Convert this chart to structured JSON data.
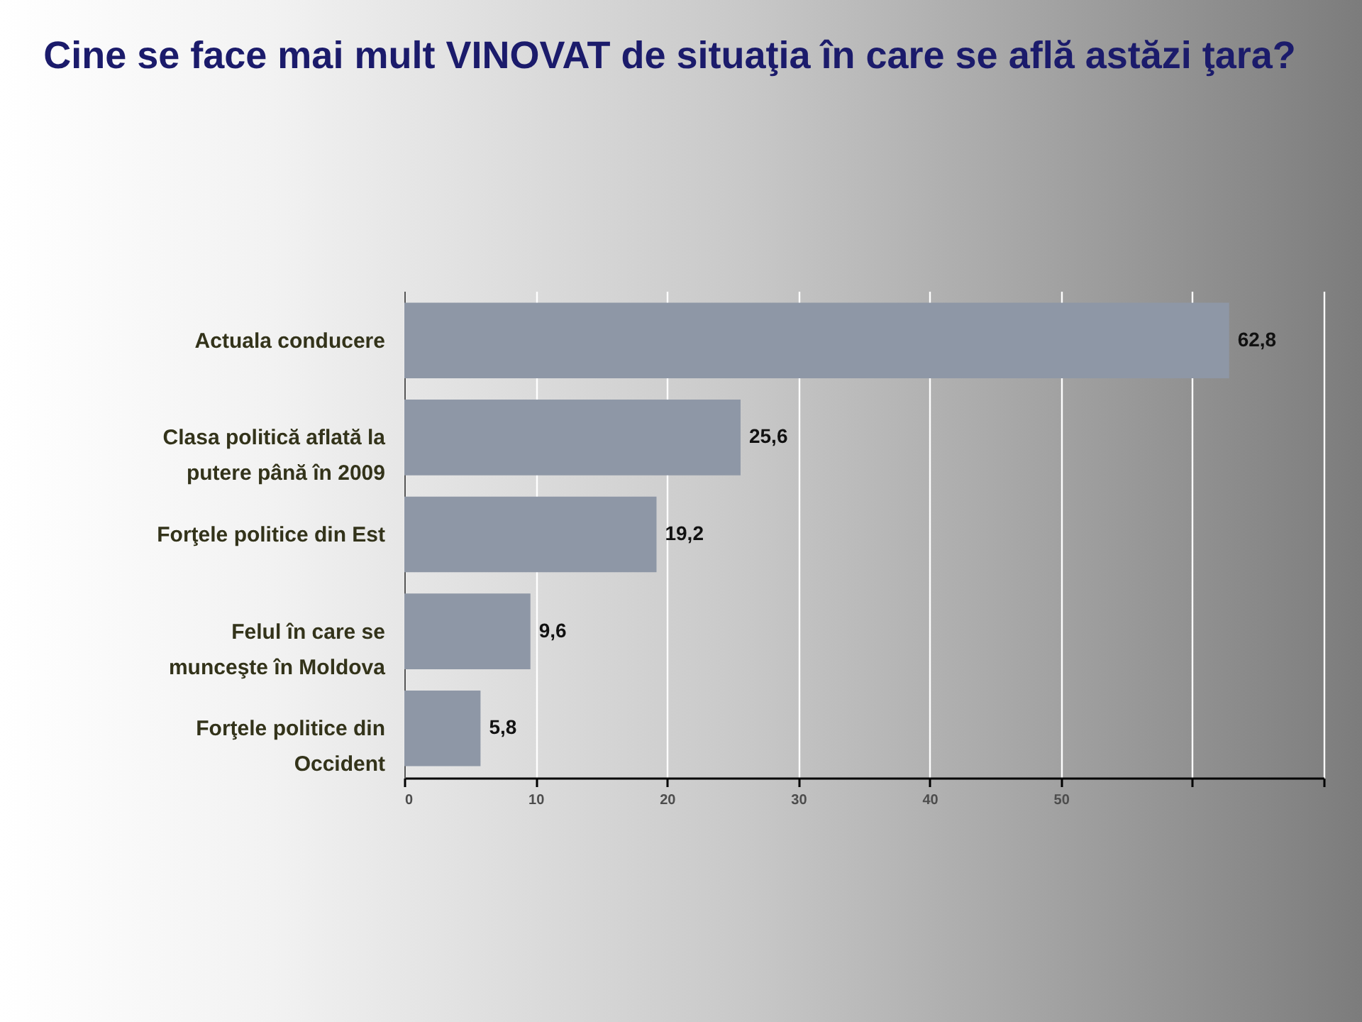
{
  "chart_data": {
    "type": "bar",
    "orientation": "horizontal",
    "title": "Cine se face mai mult VINOVAT de situaţia în care se află astăzi ţara?",
    "categories": [
      "Actuala conducere",
      "Clasa politică aflată la putere până în 2009",
      "Forţele politice din Est",
      "Felul în care se munceşte în Moldova",
      "Forţele politice din Occident"
    ],
    "values": [
      62.8,
      25.6,
      19.2,
      9.6,
      5.8
    ],
    "value_labels": [
      "62,8",
      "25,6",
      "19,2",
      "9,6",
      "5,8"
    ],
    "color": "#8e97a6",
    "xlim": [
      0,
      70
    ],
    "xticks": [
      0,
      10,
      20,
      30,
      40,
      50,
      {
        "value": 60,
        "label": null
      },
      {
        "value": 70,
        "label": null
      }
    ],
    "grid": "x"
  }
}
